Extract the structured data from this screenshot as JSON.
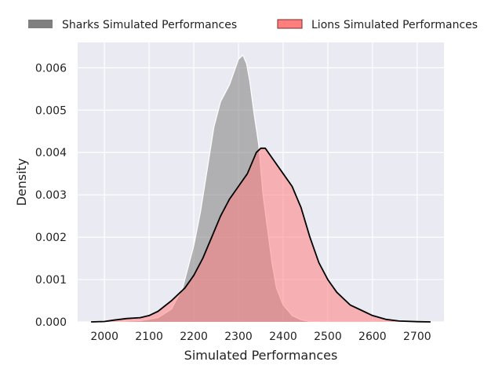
{
  "chart_data": {
    "type": "area",
    "title": "",
    "xlabel": "Simulated Performances",
    "ylabel": "Density",
    "xlim": [
      1940,
      2760
    ],
    "ylim": [
      0,
      0.0066
    ],
    "xticks": [
      2000,
      2100,
      2200,
      2300,
      2400,
      2500,
      2600,
      2700
    ],
    "yticks": [
      0,
      0.001,
      0.002,
      0.003,
      0.004,
      0.005,
      0.006
    ],
    "ytick_labels": [
      "0.000",
      "0.001",
      "0.002",
      "0.003",
      "0.004",
      "0.005",
      "0.006"
    ],
    "grid": true,
    "legend_position": "top",
    "series": [
      {
        "name": "Sharks Simulated Performances",
        "color": "#7f7f7f",
        "x": [
          2000,
          2040,
          2080,
          2120,
          2150,
          2175,
          2200,
          2215,
          2230,
          2245,
          2260,
          2270,
          2280,
          2290,
          2300,
          2310,
          2318,
          2325,
          2335,
          2345,
          2355,
          2365,
          2375,
          2385,
          2400,
          2420,
          2440,
          2460,
          2480,
          2520
        ],
        "y": [
          0,
          1e-05,
          3e-05,
          0.0001,
          0.0003,
          0.0008,
          0.0018,
          0.0026,
          0.0036,
          0.0046,
          0.0052,
          0.0054,
          0.0056,
          0.0059,
          0.0062,
          0.0063,
          0.0061,
          0.0057,
          0.0049,
          0.0042,
          0.003,
          0.0022,
          0.0014,
          0.0008,
          0.0004,
          0.00015,
          5e-05,
          1e-05,
          3e-06,
          0
        ]
      },
      {
        "name": "Lions Simulated Performances",
        "color": "#ff7f7f",
        "x": [
          1970,
          2000,
          2020,
          2050,
          2080,
          2100,
          2120,
          2150,
          2180,
          2200,
          2220,
          2240,
          2260,
          2280,
          2300,
          2320,
          2340,
          2350,
          2360,
          2380,
          2400,
          2420,
          2440,
          2460,
          2480,
          2500,
          2520,
          2550,
          2580,
          2600,
          2630,
          2660,
          2700,
          2730
        ],
        "y": [
          0,
          1e-05,
          4e-05,
          8e-05,
          0.0001,
          0.00015,
          0.00025,
          0.0005,
          0.0008,
          0.0011,
          0.0015,
          0.002,
          0.0025,
          0.0029,
          0.0032,
          0.0035,
          0.004,
          0.0041,
          0.0041,
          0.0038,
          0.0035,
          0.0032,
          0.0027,
          0.002,
          0.0014,
          0.001,
          0.0007,
          0.0004,
          0.00025,
          0.00015,
          6e-05,
          2e-05,
          5e-06,
          0
        ]
      }
    ]
  }
}
